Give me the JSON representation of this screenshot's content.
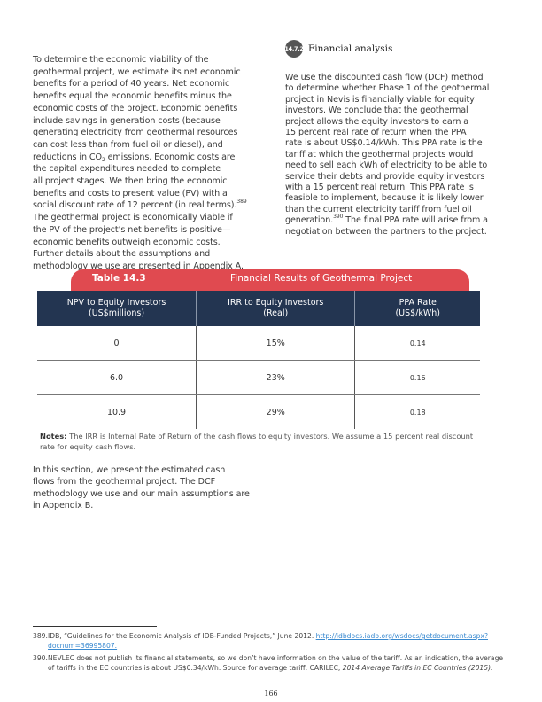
{
  "left_paragraph": [
    "To determine the economic viability of the",
    "geothermal project, we estimate its net economic",
    "benefits for a period of 40 years. Net economic",
    "benefits equal the economic benefits minus the",
    "economic costs of the project. Economic benefits",
    "include savings in generation costs (because",
    "generating electricity from geothermal resources",
    "can cost less than from fuel oil or diesel), and",
    [
      [
        "t",
        "reductions in CO"
      ],
      [
        "sub",
        "2"
      ],
      [
        "t",
        " emissions. Economic costs are"
      ]
    ],
    "the capital expenditures needed to complete",
    "all project stages. We then bring the economic",
    "benefits and costs to present value (PV) with a",
    [
      [
        "t",
        "social discount rate of 12 percent (in real terms)."
      ],
      [
        "sup",
        "389"
      ]
    ],
    "The geothermal project is economically viable if",
    "the PV of the project’s net benefits is positive—",
    "economic benefits outweigh economic costs.",
    "Further details about the assumptions and",
    "methodology we use are presented in Appendix A."
  ],
  "section": {
    "number": "14.7.2",
    "title": "Financial analysis"
  },
  "right_paragraph": [
    "We use the discounted cash flow (DCF) method",
    "to determine whether Phase 1 of the geothermal",
    "project in Nevis is financially viable for equity",
    "investors. We conclude that the geothermal",
    "project allows the equity investors to earn a",
    "15 percent real rate of return when the PPA",
    "rate is about US$0.14/kWh. This PPA rate is the",
    "tariff at which the geothermal projects would",
    "need to sell each kWh of electricity to be able to",
    "service their debts and provide equity investors",
    "with a 15 percent real return. This PPA rate is",
    "feasible to implement, because it is likely lower",
    "than the current electricity tariff from fuel oil",
    [
      [
        "t",
        "generation."
      ],
      [
        "sup",
        "390"
      ],
      [
        "t",
        " The final PPA rate will arise from a"
      ]
    ],
    "negotiation between the partners to the project."
  ],
  "table": {
    "number": "Table 14.3",
    "title": "Financial Results of Geothermal Project",
    "headers": [
      "NPV to Equity Investors (US$millions)",
      "IRR to Equity Investors (Real)",
      "PPA Rate (US$/kWh)"
    ],
    "rows": [
      [
        "0",
        "15%",
        "0.14"
      ],
      [
        "6.0",
        "23%",
        "0.16"
      ],
      [
        "10.9",
        "29%",
        "0.18"
      ]
    ],
    "notes_label": "Notes:",
    "notes_text": " The IRR is Internal Rate of Return of the cash flows to equity investors. We assume a 15 percent real discount rate for equity cash flows."
  },
  "bottom_paragraph": [
    "In this section, we present the estimated cash",
    "flows from the geothermal project. The DCF",
    "methodology we use and our main assumptions are",
    "in Appendix B."
  ],
  "footnotes": {
    "fn389": {
      "num": "389.",
      "text": "IDB, “Guidelines for the Economic Analysis of IDB-Funded Projects,” June 2012. ",
      "link": "http://idbdocs.iadb.org/wsdocs/getdocument.aspx?docnum=36995807."
    },
    "fn390": {
      "num": "390.",
      "text": "NEVLEC does not publish its financial statements, so we don’t have information on the value of the tariff. As an indication, the average of tariffs in the EC countries is about US$0.34/kWh. Source for average tariff: CARILEC, ",
      "italic": "2014 Average Tariffs in EC Countries (2015)."
    }
  },
  "page_number": "166",
  "colors": {
    "accent_red": "#e04a50",
    "navy": "#233551",
    "link": "#3a8ad0"
  }
}
